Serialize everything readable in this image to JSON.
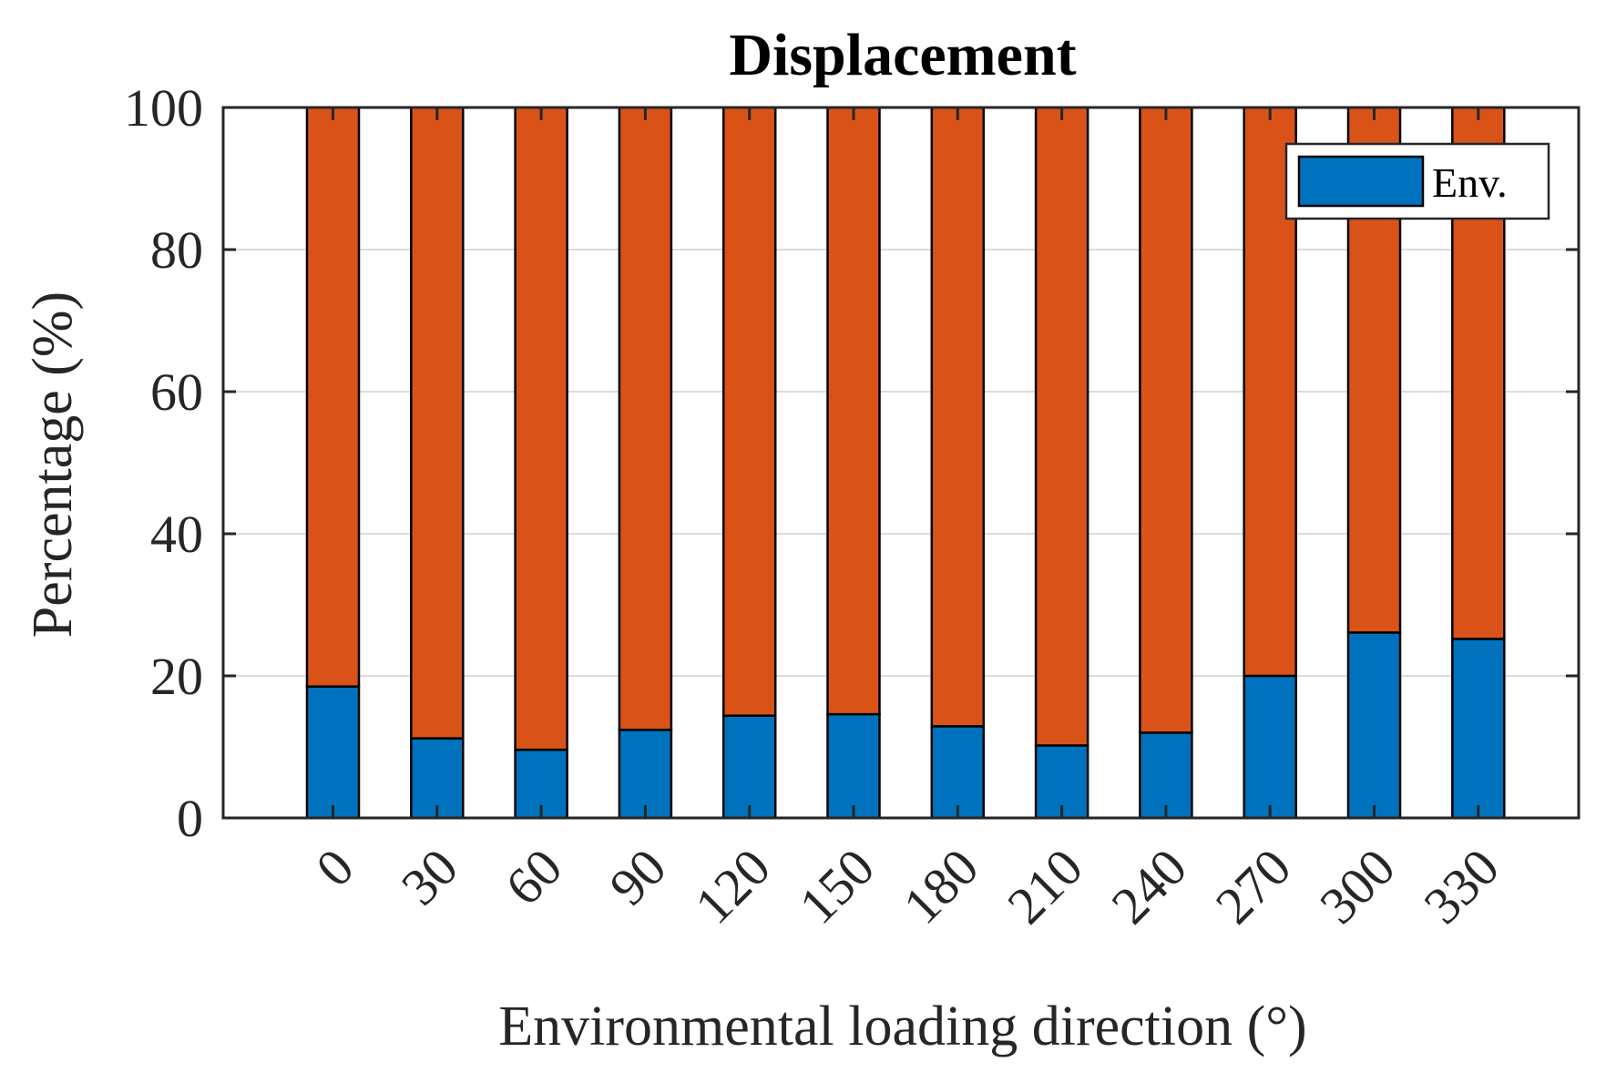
{
  "chart_data": {
    "type": "bar",
    "stacked": true,
    "title": "Displacement",
    "xlabel": "Environmental loading direction (°)",
    "ylabel": "Percentage (%)",
    "categories": [
      "0",
      "30",
      "60",
      "90",
      "120",
      "150",
      "180",
      "210",
      "240",
      "270",
      "300",
      "330"
    ],
    "series": [
      {
        "name": "Env.",
        "color": "#0072BD",
        "values": [
          18.5,
          11.2,
          9.6,
          12.4,
          14.4,
          14.6,
          12.9,
          10.2,
          12.0,
          20.0,
          26.1,
          25.2
        ]
      },
      {
        "color": "#D95319",
        "values": [
          81.5,
          88.8,
          90.4,
          87.6,
          85.6,
          85.4,
          87.1,
          89.8,
          88.0,
          80.0,
          73.9,
          74.8
        ]
      }
    ],
    "ylim": [
      0,
      100
    ],
    "yticks": [
      0,
      20,
      40,
      60,
      80,
      100
    ],
    "grid": true,
    "legend_position": "top-right"
  }
}
